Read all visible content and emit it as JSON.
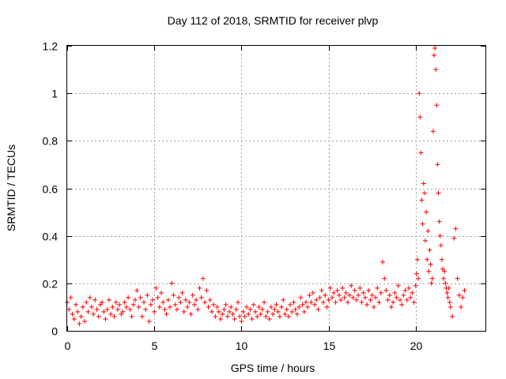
{
  "chart_data": {
    "type": "scatter",
    "title": "Day 112 of 2018, SRMTID for receiver plvp",
    "xlabel": "GPS time / hours",
    "ylabel": "SRMTID / TECUs",
    "xlim": [
      0,
      24
    ],
    "ylim": [
      0,
      1.2
    ],
    "x_ticks": [
      0,
      5,
      10,
      15,
      20
    ],
    "x_tick_labels": [
      "0",
      "5",
      "10",
      "15",
      "20"
    ],
    "y_ticks": [
      0,
      0.2,
      0.4,
      0.6,
      0.8,
      1.0,
      1.2
    ],
    "y_tick_labels": [
      "0",
      "0.2",
      "0.4",
      "0.6",
      "0.8",
      "1",
      "1.2"
    ],
    "grid": true,
    "marker": "plus",
    "color": "#ff0000",
    "series": [
      {
        "name": "SRMTID",
        "x": [
          0.0,
          0.1,
          0.2,
          0.3,
          0.4,
          0.5,
          0.6,
          0.7,
          0.8,
          0.9,
          1.0,
          1.1,
          1.2,
          1.3,
          1.4,
          1.5,
          1.6,
          1.7,
          1.8,
          1.9,
          2.0,
          2.1,
          2.2,
          2.3,
          2.4,
          2.5,
          2.6,
          2.7,
          2.8,
          2.9,
          3.0,
          3.1,
          3.2,
          3.3,
          3.4,
          3.5,
          3.6,
          3.7,
          3.8,
          3.9,
          4.0,
          4.1,
          4.2,
          4.3,
          4.4,
          4.5,
          4.6,
          4.7,
          4.8,
          4.9,
          5.0,
          5.1,
          5.2,
          5.3,
          5.4,
          5.5,
          5.6,
          5.7,
          5.8,
          5.9,
          6.0,
          6.1,
          6.2,
          6.3,
          6.4,
          6.5,
          6.6,
          6.7,
          6.8,
          6.9,
          7.0,
          7.1,
          7.2,
          7.3,
          7.4,
          7.5,
          7.6,
          7.7,
          7.8,
          7.9,
          8.0,
          8.1,
          8.2,
          8.3,
          8.4,
          8.5,
          8.6,
          8.7,
          8.8,
          8.9,
          9.0,
          9.1,
          9.2,
          9.3,
          9.4,
          9.5,
          9.6,
          9.7,
          9.8,
          9.9,
          10.0,
          10.1,
          10.2,
          10.3,
          10.4,
          10.5,
          10.6,
          10.7,
          10.8,
          10.9,
          11.0,
          11.1,
          11.2,
          11.3,
          11.4,
          11.5,
          11.6,
          11.7,
          11.8,
          11.9,
          12.0,
          12.1,
          12.2,
          12.3,
          12.4,
          12.5,
          12.6,
          12.7,
          12.8,
          12.9,
          13.0,
          13.1,
          13.2,
          13.3,
          13.4,
          13.5,
          13.6,
          13.7,
          13.8,
          13.9,
          14.0,
          14.1,
          14.2,
          14.3,
          14.4,
          14.5,
          14.6,
          14.7,
          14.8,
          14.9,
          15.0,
          15.1,
          15.2,
          15.3,
          15.4,
          15.5,
          15.6,
          15.7,
          15.8,
          15.9,
          16.0,
          16.1,
          16.2,
          16.3,
          16.4,
          16.5,
          16.6,
          16.7,
          16.8,
          16.9,
          17.0,
          17.1,
          17.2,
          17.3,
          17.4,
          17.5,
          17.6,
          17.7,
          17.8,
          17.9,
          18.0,
          18.1,
          18.2,
          18.3,
          18.4,
          18.5,
          18.6,
          18.7,
          18.8,
          18.9,
          19.0,
          19.1,
          19.2,
          19.3,
          19.4,
          19.5,
          19.6,
          19.7,
          19.8,
          19.9,
          20.0,
          20.05,
          20.1,
          20.15,
          20.2,
          20.25,
          20.3,
          20.35,
          20.4,
          20.45,
          20.5,
          20.55,
          20.6,
          20.65,
          20.7,
          20.75,
          20.8,
          20.85,
          20.9,
          20.95,
          21.0,
          21.05,
          21.1,
          21.15,
          21.2,
          21.25,
          21.3,
          21.35,
          21.4,
          21.45,
          21.5,
          21.55,
          21.6,
          21.65,
          21.7,
          21.75,
          21.8,
          21.85,
          21.9,
          21.95,
          22.0,
          22.1,
          22.2,
          22.3,
          22.4,
          22.5,
          22.6,
          22.7,
          22.8
        ],
        "y": [
          0.12,
          0.09,
          0.14,
          0.07,
          0.05,
          0.11,
          0.08,
          0.03,
          0.06,
          0.1,
          0.04,
          0.12,
          0.08,
          0.14,
          0.1,
          0.07,
          0.13,
          0.09,
          0.06,
          0.11,
          0.12,
          0.08,
          0.05,
          0.09,
          0.13,
          0.07,
          0.1,
          0.06,
          0.12,
          0.09,
          0.11,
          0.07,
          0.08,
          0.12,
          0.1,
          0.14,
          0.09,
          0.06,
          0.11,
          0.13,
          0.17,
          0.1,
          0.14,
          0.06,
          0.12,
          0.09,
          0.15,
          0.04,
          0.11,
          0.13,
          0.08,
          0.18,
          0.14,
          0.1,
          0.16,
          0.12,
          0.09,
          0.07,
          0.13,
          0.1,
          0.2,
          0.15,
          0.11,
          0.09,
          0.14,
          0.12,
          0.16,
          0.08,
          0.13,
          0.1,
          0.12,
          0.07,
          0.15,
          0.11,
          0.13,
          0.09,
          0.18,
          0.14,
          0.22,
          0.12,
          0.17,
          0.1,
          0.13,
          0.08,
          0.11,
          0.06,
          0.1,
          0.08,
          0.05,
          0.07,
          0.09,
          0.11,
          0.06,
          0.08,
          0.1,
          0.07,
          0.05,
          0.09,
          0.12,
          0.06,
          0.04,
          0.08,
          0.06,
          0.1,
          0.07,
          0.09,
          0.05,
          0.11,
          0.08,
          0.06,
          0.1,
          0.07,
          0.09,
          0.12,
          0.06,
          0.08,
          0.05,
          0.1,
          0.07,
          0.09,
          0.11,
          0.08,
          0.06,
          0.1,
          0.13,
          0.07,
          0.09,
          0.06,
          0.11,
          0.08,
          0.12,
          0.09,
          0.07,
          0.1,
          0.14,
          0.11,
          0.08,
          0.12,
          0.1,
          0.15,
          0.12,
          0.16,
          0.11,
          0.13,
          0.09,
          0.14,
          0.17,
          0.12,
          0.15,
          0.1,
          0.13,
          0.18,
          0.14,
          0.16,
          0.12,
          0.17,
          0.15,
          0.13,
          0.18,
          0.14,
          0.16,
          0.12,
          0.15,
          0.19,
          0.14,
          0.17,
          0.13,
          0.15,
          0.18,
          0.12,
          0.16,
          0.14,
          0.11,
          0.17,
          0.13,
          0.15,
          0.1,
          0.14,
          0.18,
          0.12,
          0.16,
          0.29,
          0.22,
          0.17,
          0.13,
          0.15,
          0.1,
          0.12,
          0.16,
          0.14,
          0.19,
          0.13,
          0.11,
          0.15,
          0.17,
          0.13,
          0.18,
          0.14,
          0.16,
          0.12,
          0.19,
          0.24,
          0.3,
          0.22,
          1.0,
          0.9,
          0.75,
          0.55,
          0.45,
          0.62,
          0.58,
          0.38,
          0.5,
          0.3,
          0.42,
          0.25,
          0.34,
          0.28,
          0.2,
          0.22,
          0.84,
          1.16,
          1.19,
          1.1,
          0.95,
          0.7,
          0.58,
          0.46,
          0.4,
          0.36,
          0.3,
          0.26,
          0.22,
          0.25,
          0.2,
          0.18,
          0.16,
          0.14,
          0.18,
          0.12,
          0.1,
          0.06,
          0.39,
          0.43,
          0.22,
          0.15,
          0.1,
          0.14,
          0.17
        ]
      }
    ]
  }
}
